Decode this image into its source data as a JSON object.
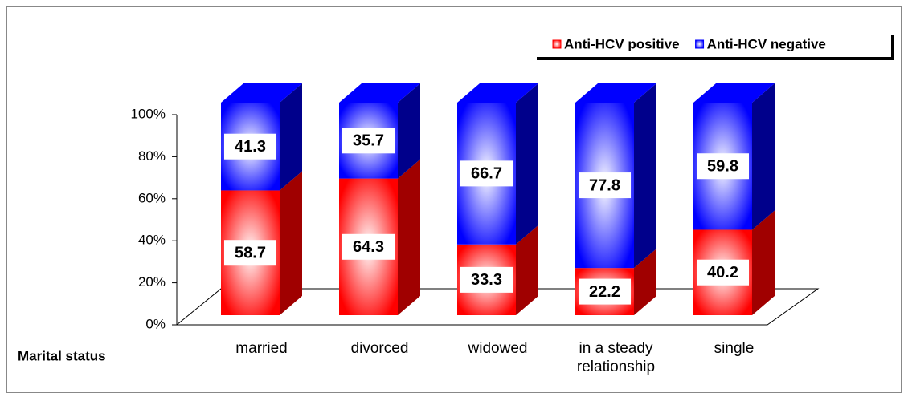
{
  "chart_data": {
    "type": "bar3d_stacked",
    "x_label": "Marital status",
    "categories": [
      "married",
      "divorced",
      "widowed",
      "in a steady relationship",
      "single"
    ],
    "series": [
      {
        "name": "Anti-HCV positive",
        "color": "#ff0000",
        "values": [
          58.7,
          64.3,
          33.3,
          22.2,
          40.2
        ]
      },
      {
        "name": "Anti-HCV negative",
        "color": "#0000ff",
        "values": [
          41.3,
          35.7,
          66.7,
          77.8,
          59.8
        ]
      }
    ],
    "ylim": [
      0,
      100
    ],
    "yticks": [
      {
        "value": 0,
        "label": "0%"
      },
      {
        "value": 20,
        "label": "20%"
      },
      {
        "value": 40,
        "label": "40%"
      },
      {
        "value": 60,
        "label": "60%"
      },
      {
        "value": 80,
        "label": "80%"
      },
      {
        "value": 100,
        "label": "100%"
      }
    ],
    "legend": "top-right"
  }
}
